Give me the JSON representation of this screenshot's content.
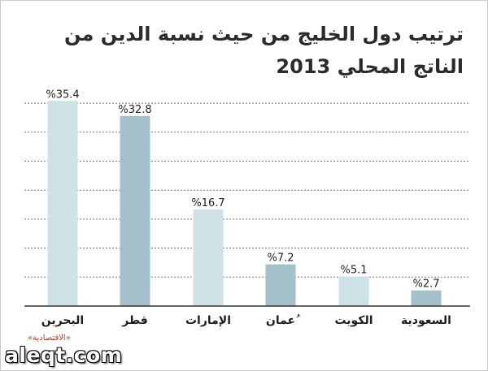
{
  "title": "ترتيب دول الخليج من حيث نسبة الدين من الناتج المحلي 2013",
  "source": "«الاقتصادية»",
  "watermark": "aleqt.com",
  "colors": {
    "light_bar": "#cfe2e7",
    "dark_bar": "#a3c0cb",
    "grid": "#777777",
    "axis": "#333333"
  },
  "chart_data": {
    "type": "bar",
    "title": "ترتيب دول الخليج من حيث نسبة الدين من الناتج المحلي 2013",
    "categories": [
      "البحرين",
      "قطر",
      "الإمارات",
      "ُعمان",
      "الكويت",
      "السعودية"
    ],
    "values": [
      35.4,
      32.8,
      16.7,
      7.2,
      5.1,
      2.7
    ],
    "value_labels": [
      "%35.4",
      "%32.8",
      "%16.7",
      "%7.2",
      "%5.1",
      "%2.7"
    ],
    "bar_styles": [
      "light",
      "dark",
      "light",
      "dark",
      "light",
      "dark"
    ],
    "ylim": [
      0,
      36
    ],
    "grid": true,
    "xlabel": "",
    "ylabel": ""
  }
}
